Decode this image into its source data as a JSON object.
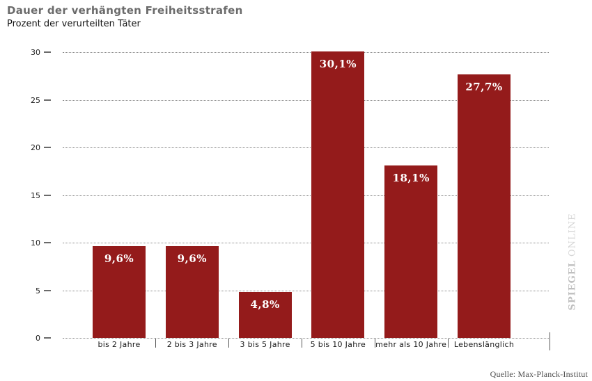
{
  "header": {
    "title": "Dauer der verhängten Freiheitsstrafen",
    "subtitle": "Prozent der verurteilten Täter"
  },
  "chart_data": {
    "type": "bar",
    "title": "Dauer der verhängten Freiheitsstrafen",
    "subtitle": "Prozent der verurteilten Täter",
    "categories": [
      "bis 2 Jahre",
      "2 bis 3 Jahre",
      "3 bis 5 Jahre",
      "5 bis 10 Jahre",
      "mehr als 10 Jahre",
      "Lebenslänglich"
    ],
    "values": [
      9.6,
      9.6,
      4.8,
      30.1,
      18.1,
      27.7
    ],
    "value_labels": [
      "9,6%",
      "9,6%",
      "4,8%",
      "30,1%",
      "18,1%",
      "27,7%"
    ],
    "xlabel": "",
    "ylabel": "",
    "ylim": [
      0,
      30
    ],
    "yticks": [
      0,
      5,
      10,
      15,
      20,
      25,
      30
    ],
    "grid": "horizontal-dotted",
    "legend": "none",
    "bar_color": "#941B1B",
    "value_label_color": "#FFFFFF"
  },
  "watermark": {
    "spiegel": "SPIEGEL",
    "online": "ONLINE"
  },
  "source": {
    "label": "Quelle: Max-Planck-Institut"
  }
}
